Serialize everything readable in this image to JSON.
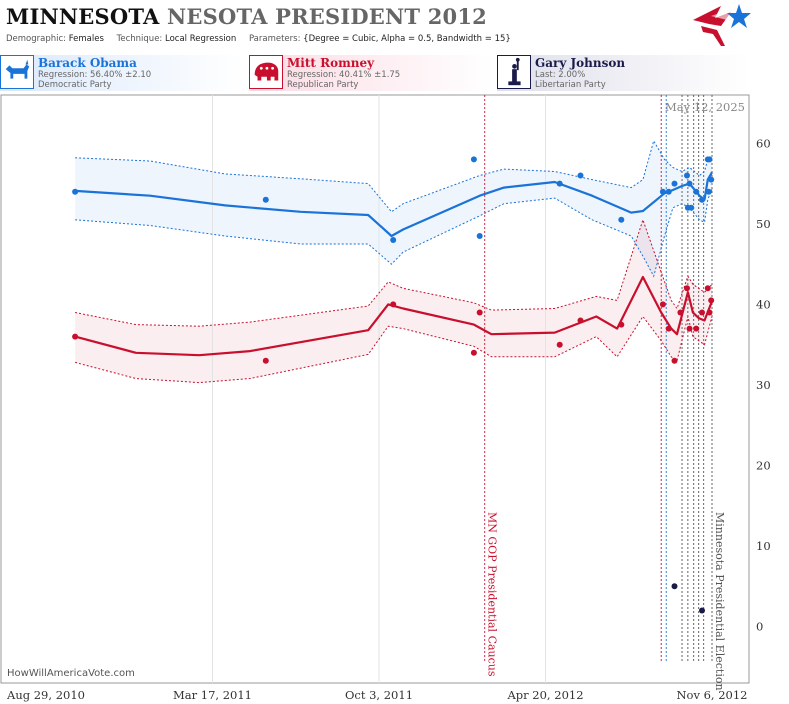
{
  "header": {
    "title_state": "MINNESOTA",
    "title_rest": "NESOTA PRESIDENT 2012",
    "demographic_label": "Demographic:",
    "demographic": "Females",
    "technique_label": "Technique:",
    "technique": "Local Regression",
    "parameters_label": "Parameters:",
    "parameters": "{Degree = Cubic, Alpha = 0.5, Bandwidth = 15}"
  },
  "candidates": [
    {
      "name": "Barack Obama",
      "stat": "Regression: 56.40% ±2.10",
      "party": "Democratic Party",
      "color": "#1a73d9",
      "icon": "donkey-icon"
    },
    {
      "name": "Mitt Romney",
      "stat": "Regression: 40.41% ±1.75",
      "party": "Republican Party",
      "color": "#c8102e",
      "icon": "elephant-icon"
    },
    {
      "name": "Gary Johnson",
      "stat": "Last: 2.00%",
      "party": "Libertarian Party",
      "color": "#1b1b4b",
      "icon": "liberty-icon"
    }
  ],
  "watermark": "HowWillAmericaVote.com",
  "chart_data": {
    "type": "line",
    "date_stamp": "May 12, 2025",
    "x_ticks": [
      "Aug 29, 2010",
      "Mar 17, 2011",
      "Oct 3, 2011",
      "Apr 20, 2012",
      "Nov 6, 2012"
    ],
    "x_range": [
      "2010-08-29",
      "2012-11-06"
    ],
    "ylim": [
      -7,
      66
    ],
    "y_ticks": [
      0,
      10,
      20,
      30,
      40,
      50,
      60
    ],
    "annotations": [
      {
        "date": "2012-02-07",
        "label": "MN GOP Presidential Caucus",
        "color": "#c8102e"
      },
      {
        "date": "2012-11-06",
        "label": "Minnesota Presidential Election",
        "color": "#555555"
      }
    ],
    "poll_lines": [
      {
        "date": "2012-09-06",
        "color": "#c8102e"
      },
      {
        "date": "2012-09-12",
        "color": "#1a73d9"
      },
      {
        "date": "2012-10-01",
        "color": "#555555"
      },
      {
        "date": "2012-10-08",
        "color": "#555555"
      },
      {
        "date": "2012-10-15",
        "color": "#555555"
      },
      {
        "date": "2012-10-21",
        "color": "#555555"
      },
      {
        "date": "2012-10-27",
        "color": "#555555"
      }
    ],
    "series": [
      {
        "name": "Barack Obama",
        "color": "#1a73d9",
        "trend": [
          [
            "2010-10-03",
            54.1
          ],
          [
            "2011-01-01",
            53.5
          ],
          [
            "2011-04-01",
            52.3
          ],
          [
            "2011-07-01",
            51.5
          ],
          [
            "2011-09-20",
            51.1
          ],
          [
            "2011-10-18",
            48.5
          ],
          [
            "2011-11-01",
            49.3
          ],
          [
            "2012-02-01",
            53.5
          ],
          [
            "2012-03-01",
            54.5
          ],
          [
            "2012-05-01",
            55.2
          ],
          [
            "2012-06-15",
            53.5
          ],
          [
            "2012-08-01",
            51.4
          ],
          [
            "2012-08-15",
            51.6
          ],
          [
            "2012-09-10",
            53.8
          ],
          [
            "2012-09-20",
            54.2
          ],
          [
            "2012-10-01",
            54.7
          ],
          [
            "2012-10-10",
            55.0
          ],
          [
            "2012-10-22",
            53.5
          ],
          [
            "2012-10-28",
            53.0
          ],
          [
            "2012-11-01",
            55.5
          ],
          [
            "2012-11-06",
            56.4
          ]
        ],
        "upper": [
          [
            "2010-10-03",
            58.2
          ],
          [
            "2011-01-01",
            57.8
          ],
          [
            "2011-04-01",
            56.2
          ],
          [
            "2011-07-01",
            55.6
          ],
          [
            "2011-09-20",
            55.0
          ],
          [
            "2011-10-18",
            51.5
          ],
          [
            "2011-11-01",
            52.5
          ],
          [
            "2012-02-01",
            56.0
          ],
          [
            "2012-03-01",
            56.8
          ],
          [
            "2012-05-01",
            56.5
          ],
          [
            "2012-06-15",
            55.5
          ],
          [
            "2012-08-01",
            54.5
          ],
          [
            "2012-08-15",
            55.5
          ],
          [
            "2012-08-28",
            60.3
          ],
          [
            "2012-09-10",
            58.0
          ],
          [
            "2012-09-20",
            57.0
          ],
          [
            "2012-10-01",
            56.5
          ],
          [
            "2012-10-10",
            57.0
          ],
          [
            "2012-10-22",
            56.0
          ],
          [
            "2012-10-28",
            56.5
          ],
          [
            "2012-11-01",
            58.0
          ],
          [
            "2012-11-06",
            58.5
          ]
        ],
        "lower": [
          [
            "2010-10-03",
            50.5
          ],
          [
            "2011-01-01",
            49.8
          ],
          [
            "2011-04-01",
            48.5
          ],
          [
            "2011-07-01",
            47.5
          ],
          [
            "2011-09-20",
            47.5
          ],
          [
            "2011-10-18",
            45.0
          ],
          [
            "2011-11-01",
            46.5
          ],
          [
            "2012-02-01",
            51.0
          ],
          [
            "2012-03-01",
            52.5
          ],
          [
            "2012-05-01",
            53.2
          ],
          [
            "2012-06-15",
            50.5
          ],
          [
            "2012-08-01",
            48.5
          ],
          [
            "2012-08-15",
            46.0
          ],
          [
            "2012-08-28",
            43.5
          ],
          [
            "2012-09-10",
            48.5
          ],
          [
            "2012-09-20",
            52.0
          ],
          [
            "2012-10-01",
            52.5
          ],
          [
            "2012-10-10",
            52.0
          ],
          [
            "2012-10-22",
            50.5
          ],
          [
            "2012-10-28",
            50.2
          ],
          [
            "2012-11-01",
            53.0
          ],
          [
            "2012-11-06",
            54.3
          ]
        ],
        "points": [
          [
            "2010-10-03",
            54
          ],
          [
            "2011-05-20",
            53
          ],
          [
            "2011-10-20",
            48
          ],
          [
            "2012-01-25",
            58
          ],
          [
            "2012-02-01",
            48.5
          ],
          [
            "2012-05-07",
            55
          ],
          [
            "2012-06-01",
            56
          ],
          [
            "2012-07-20",
            50.5
          ],
          [
            "2012-09-08",
            54
          ],
          [
            "2012-09-15",
            54
          ],
          [
            "2012-09-22",
            55
          ],
          [
            "2012-10-07",
            56
          ],
          [
            "2012-10-10",
            55
          ],
          [
            "2012-10-08",
            52
          ],
          [
            "2012-10-12",
            52
          ],
          [
            "2012-10-18",
            54
          ],
          [
            "2012-10-25",
            53
          ],
          [
            "2012-11-01",
            58
          ],
          [
            "2012-11-03",
            58
          ],
          [
            "2012-11-02",
            54
          ],
          [
            "2012-11-05",
            55.5
          ]
        ]
      },
      {
        "name": "Mitt Romney",
        "color": "#c8102e",
        "trend": [
          [
            "2010-10-03",
            36
          ],
          [
            "2010-12-15",
            34.0
          ],
          [
            "2011-03-01",
            33.7
          ],
          [
            "2011-05-01",
            34.2
          ],
          [
            "2011-09-20",
            36.8
          ],
          [
            "2011-10-14",
            40.0
          ],
          [
            "2011-11-01",
            39.5
          ],
          [
            "2012-01-25",
            37.5
          ],
          [
            "2012-02-15",
            36.3
          ],
          [
            "2012-05-01",
            36.5
          ],
          [
            "2012-06-20",
            38.5
          ],
          [
            "2012-07-15",
            37.0
          ],
          [
            "2012-08-15",
            43.4
          ],
          [
            "2012-09-06",
            39.0
          ],
          [
            "2012-09-18",
            37.0
          ],
          [
            "2012-09-25",
            36.3
          ],
          [
            "2012-10-08",
            41.5
          ],
          [
            "2012-10-14",
            39.0
          ],
          [
            "2012-10-21",
            38.3
          ],
          [
            "2012-10-28",
            38.0
          ],
          [
            "2012-11-06",
            40.4
          ]
        ],
        "upper": [
          [
            "2010-10-03",
            39.0
          ],
          [
            "2010-12-15",
            37.5
          ],
          [
            "2011-03-01",
            37.3
          ],
          [
            "2011-05-01",
            37.8
          ],
          [
            "2011-09-20",
            39.8
          ],
          [
            "2011-10-14",
            42.8
          ],
          [
            "2011-11-01",
            42.0
          ],
          [
            "2012-01-25",
            40.2
          ],
          [
            "2012-02-15",
            39.3
          ],
          [
            "2012-05-01",
            39.5
          ],
          [
            "2012-06-20",
            41.0
          ],
          [
            "2012-07-15",
            40.5
          ],
          [
            "2012-08-15",
            50.5
          ],
          [
            "2012-09-06",
            44.0
          ],
          [
            "2012-09-18",
            40.5
          ],
          [
            "2012-09-25",
            39.5
          ],
          [
            "2012-10-08",
            43.5
          ],
          [
            "2012-10-14",
            42.5
          ],
          [
            "2012-10-21",
            42.0
          ],
          [
            "2012-10-28",
            41.5
          ],
          [
            "2012-11-06",
            42.5
          ]
        ],
        "lower": [
          [
            "2010-10-03",
            32.8
          ],
          [
            "2010-12-15",
            30.8
          ],
          [
            "2011-03-01",
            30.3
          ],
          [
            "2011-05-01",
            30.8
          ],
          [
            "2011-09-20",
            33.8
          ],
          [
            "2011-10-14",
            37.3
          ],
          [
            "2011-11-01",
            37.0
          ],
          [
            "2012-01-25",
            34.8
          ],
          [
            "2012-02-15",
            33.5
          ],
          [
            "2012-05-01",
            33.5
          ],
          [
            "2012-06-20",
            36.0
          ],
          [
            "2012-07-15",
            33.5
          ],
          [
            "2012-08-15",
            38.5
          ],
          [
            "2012-09-06",
            35.5
          ],
          [
            "2012-09-18",
            33.5
          ],
          [
            "2012-09-25",
            33.0
          ],
          [
            "2012-10-08",
            38.5
          ],
          [
            "2012-10-14",
            36.0
          ],
          [
            "2012-10-21",
            35.5
          ],
          [
            "2012-10-28",
            35.0
          ],
          [
            "2012-11-06",
            38.5
          ]
        ],
        "points": [
          [
            "2010-10-03",
            36
          ],
          [
            "2011-05-20",
            33
          ],
          [
            "2011-10-20",
            40
          ],
          [
            "2012-01-25",
            34
          ],
          [
            "2012-02-01",
            39
          ],
          [
            "2012-05-07",
            35
          ],
          [
            "2012-06-01",
            38
          ],
          [
            "2012-07-20",
            37.5
          ],
          [
            "2012-09-08",
            40
          ],
          [
            "2012-09-15",
            37
          ],
          [
            "2012-09-22",
            33
          ],
          [
            "2012-09-29",
            39
          ],
          [
            "2012-10-07",
            42
          ],
          [
            "2012-10-10",
            37
          ],
          [
            "2012-10-18",
            37
          ],
          [
            "2012-10-25",
            39
          ],
          [
            "2012-11-01",
            42
          ],
          [
            "2012-11-03",
            39
          ],
          [
            "2012-11-05",
            40.5
          ]
        ]
      },
      {
        "name": "Gary Johnson",
        "color": "#1b1b4b",
        "points": [
          [
            "2012-09-22",
            5
          ],
          [
            "2012-10-25",
            2
          ]
        ]
      }
    ]
  }
}
